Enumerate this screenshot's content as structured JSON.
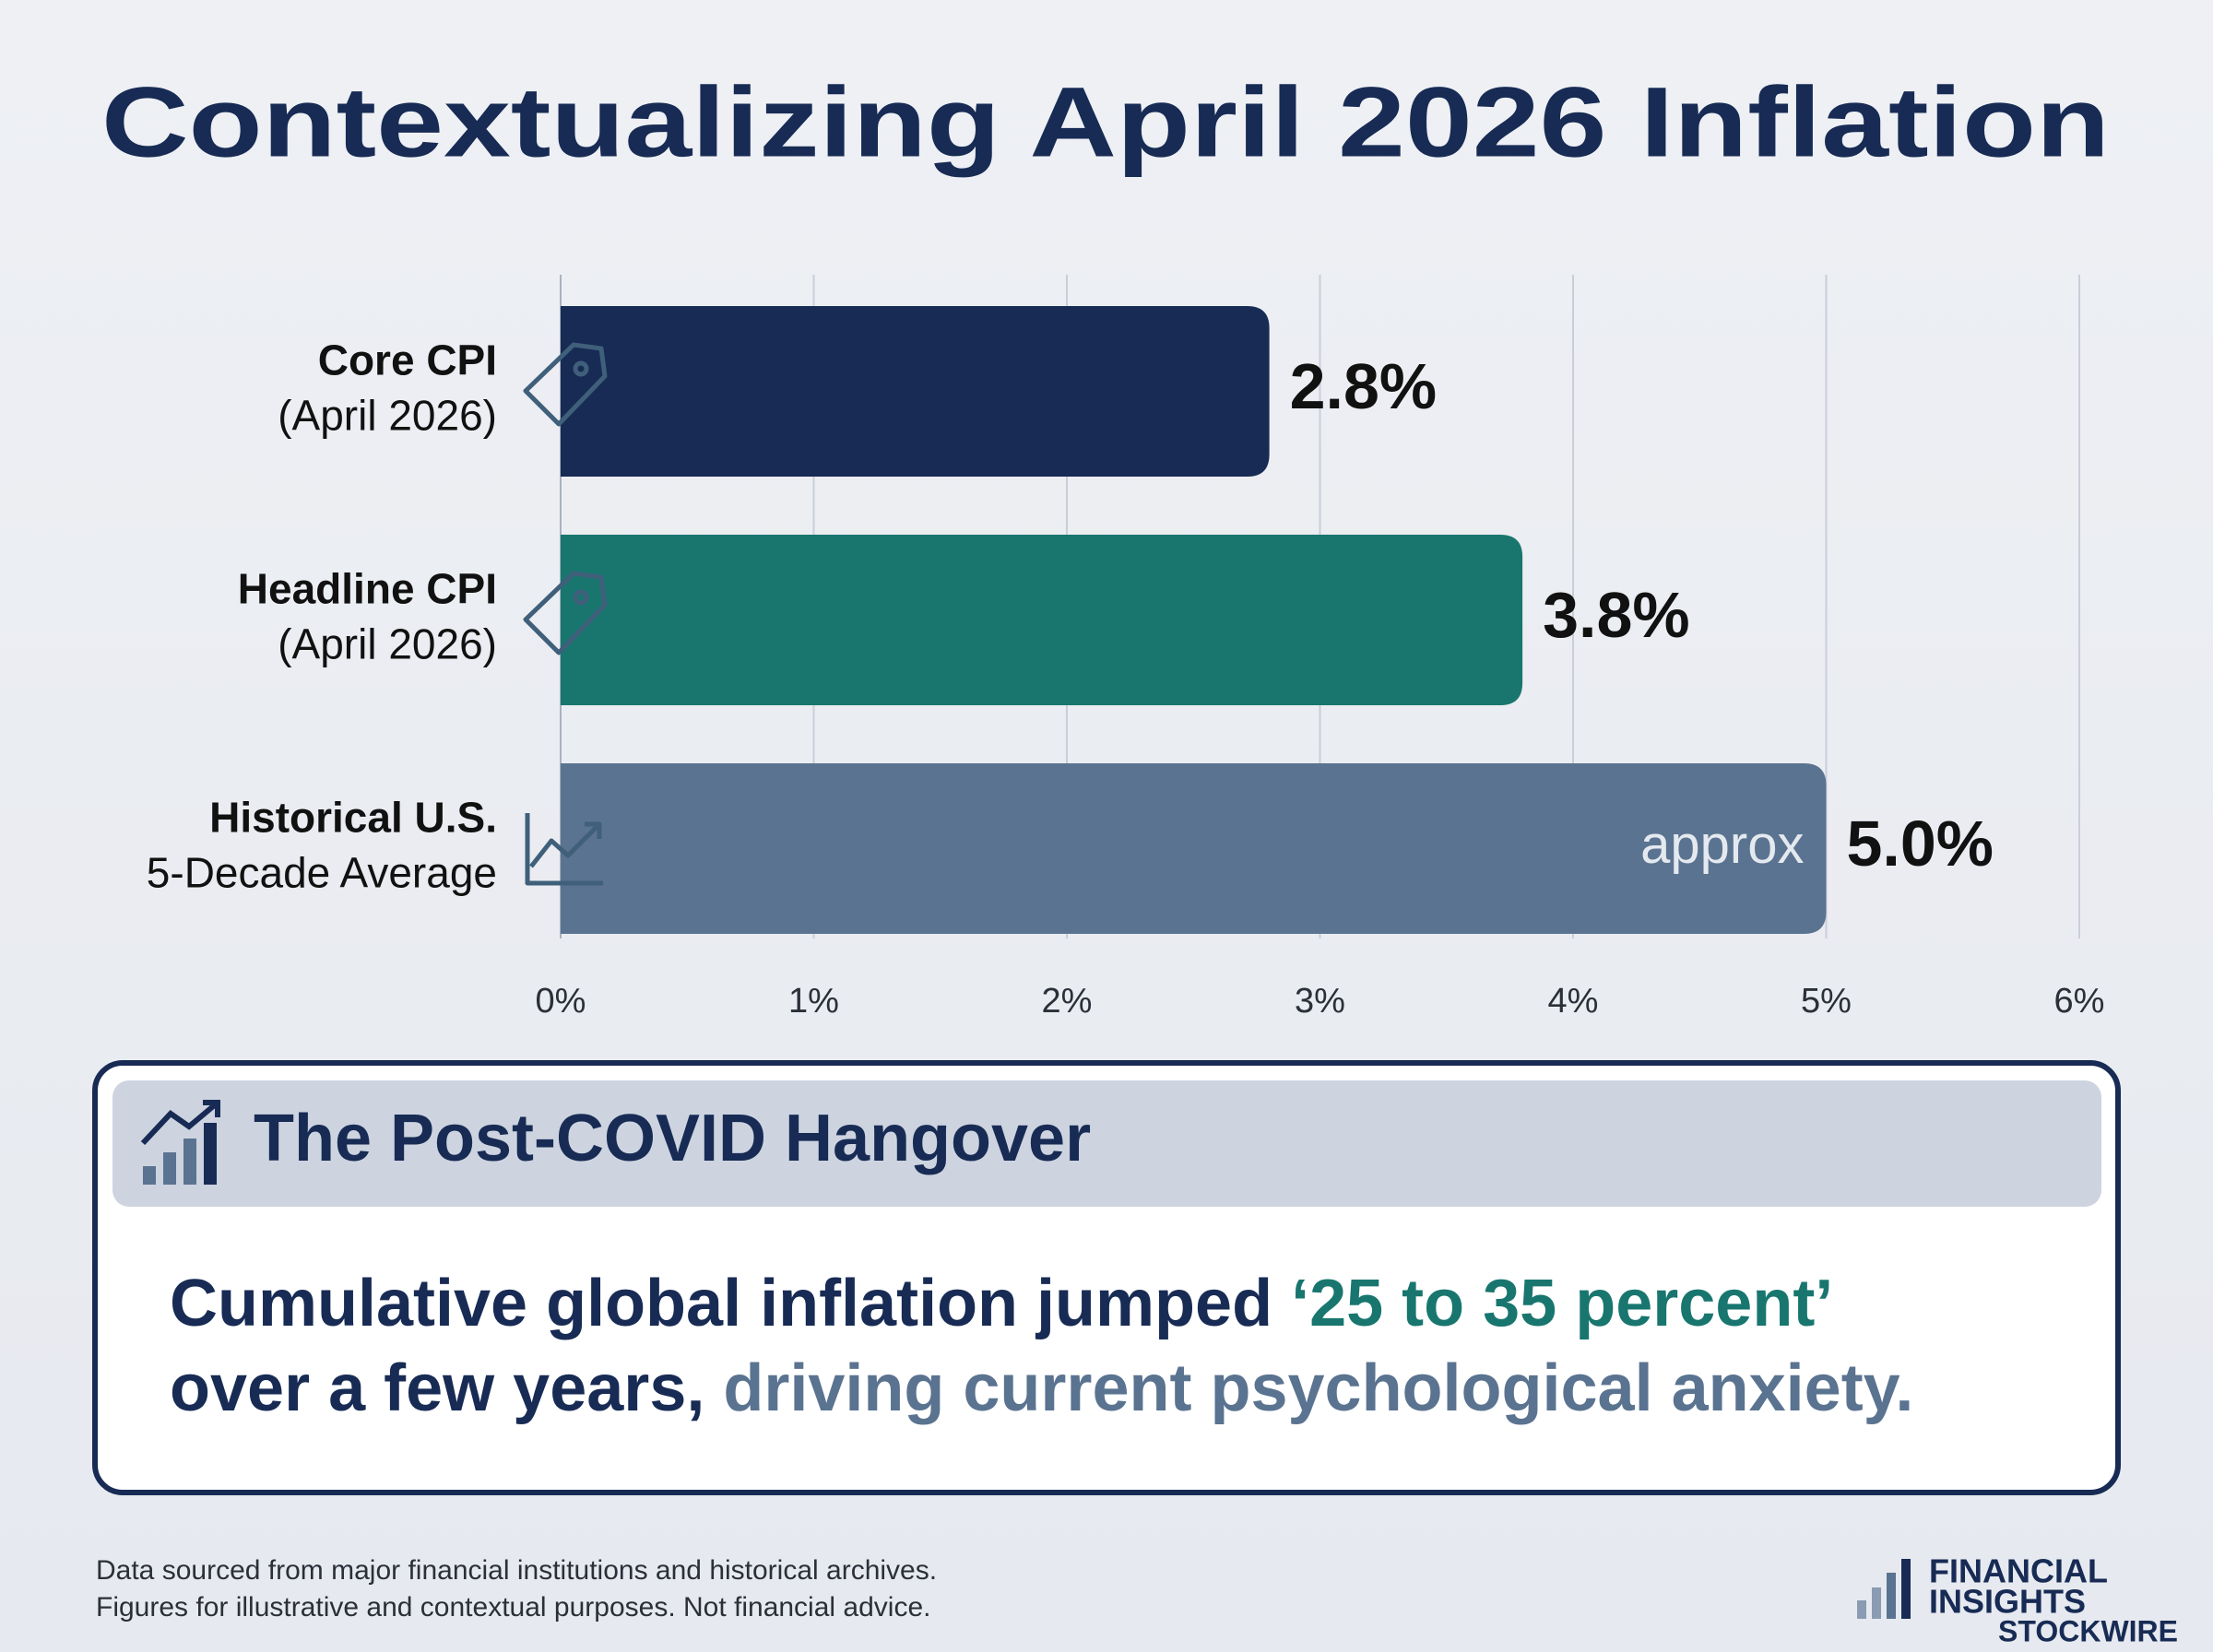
{
  "chart_data": {
    "type": "bar",
    "orientation": "horizontal",
    "title": "Contextualizing April 2026 Inflation",
    "categories": [
      [
        "Core CPI",
        "(April 2026)"
      ],
      [
        "Headline CPI",
        "(April 2026)"
      ],
      [
        "Historical U.S.",
        "5-Decade Average"
      ]
    ],
    "values": [
      2.8,
      3.8,
      5.0
    ],
    "value_labels": [
      "2.8%",
      "3.8%",
      "5.0%"
    ],
    "colors": [
      "#172b54",
      "#18766f",
      "#5a7390"
    ],
    "bar_notes": [
      null,
      null,
      "approx"
    ],
    "xlim": [
      0,
      6
    ],
    "xticks": [
      {
        "value": 0,
        "label": "0%"
      },
      {
        "value": 1,
        "label": "1%"
      },
      {
        "value": 2,
        "label": "2%"
      },
      {
        "value": 3,
        "label": "3%"
      },
      {
        "value": 4,
        "label": "4%"
      },
      {
        "value": 5,
        "label": "5%"
      },
      {
        "value": 6,
        "label": "6%"
      }
    ],
    "grid": true
  },
  "callout": {
    "heading": "The Post-COVID Hangover",
    "lines": [
      [
        {
          "text": "Cumulative global inflation jumped ",
          "style": "primary"
        },
        {
          "text": "‘25 to 35 percent’",
          "style": "accent"
        }
      ],
      [
        {
          "text": "over a few years, ",
          "style": "primary"
        },
        {
          "text": "driving current psychological anxiety.",
          "style": "muted"
        }
      ]
    ]
  },
  "footer": {
    "notes": [
      "Data sourced from major financial institutions and historical archives.",
      "Figures for illustrative and contextual purposes. Not financial advice."
    ],
    "brand": [
      "FINANCIAL",
      "INSIGHTS"
    ],
    "watermark": "STOCKWIRE"
  }
}
